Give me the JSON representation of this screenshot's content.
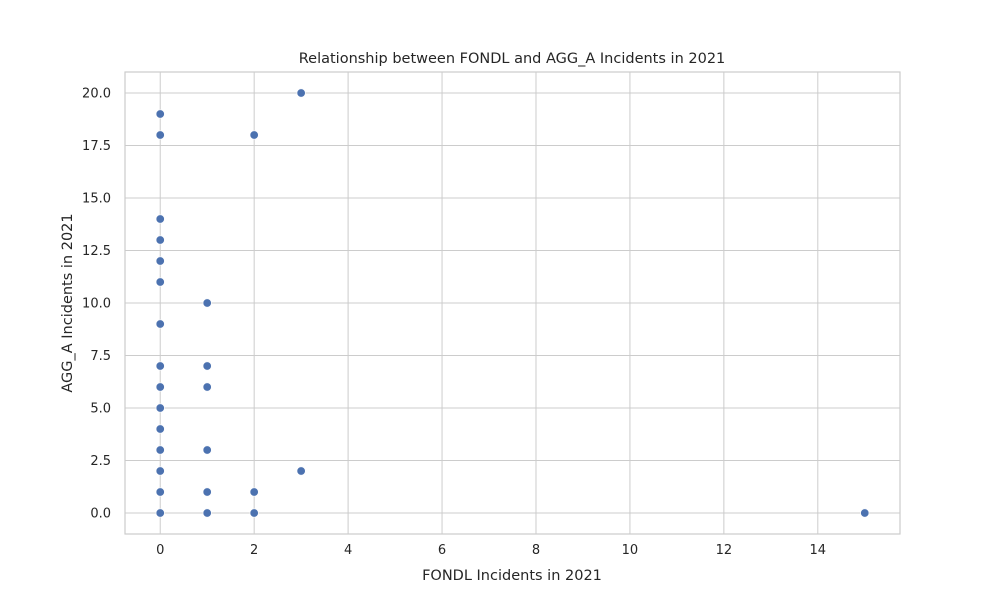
{
  "chart_data": {
    "type": "scatter",
    "title": "Relationship between FONDL and AGG_A Incidents in 2021",
    "xlabel": "FONDL Incidents in 2021",
    "ylabel": "AGG_A Incidents in 2021",
    "xlim": [
      -0.75,
      15.75
    ],
    "ylim": [
      -1,
      21
    ],
    "x_ticks": [
      0,
      2,
      4,
      6,
      8,
      10,
      12,
      14
    ],
    "y_ticks": [
      0,
      2.5,
      5,
      7.5,
      10,
      12.5,
      15,
      17.5,
      20
    ],
    "x_tick_labels": [
      "0",
      "2",
      "4",
      "6",
      "8",
      "10",
      "12",
      "14"
    ],
    "y_tick_labels": [
      "0.0",
      "2.5",
      "5.0",
      "7.5",
      "10.0",
      "12.5",
      "15.0",
      "17.5",
      "20.0"
    ],
    "grid": true,
    "color": "#4c72b0",
    "points": [
      {
        "x": 0,
        "y": 19
      },
      {
        "x": 0,
        "y": 18
      },
      {
        "x": 0,
        "y": 14
      },
      {
        "x": 0,
        "y": 13
      },
      {
        "x": 0,
        "y": 12
      },
      {
        "x": 0,
        "y": 11
      },
      {
        "x": 0,
        "y": 9
      },
      {
        "x": 0,
        "y": 7
      },
      {
        "x": 0,
        "y": 6
      },
      {
        "x": 0,
        "y": 5
      },
      {
        "x": 0,
        "y": 4
      },
      {
        "x": 0,
        "y": 3
      },
      {
        "x": 0,
        "y": 2
      },
      {
        "x": 0,
        "y": 1
      },
      {
        "x": 0,
        "y": 0
      },
      {
        "x": 1,
        "y": 10
      },
      {
        "x": 1,
        "y": 7
      },
      {
        "x": 1,
        "y": 6
      },
      {
        "x": 1,
        "y": 3
      },
      {
        "x": 1,
        "y": 1
      },
      {
        "x": 1,
        "y": 0
      },
      {
        "x": 2,
        "y": 18
      },
      {
        "x": 2,
        "y": 1
      },
      {
        "x": 2,
        "y": 0
      },
      {
        "x": 3,
        "y": 20
      },
      {
        "x": 3,
        "y": 2
      },
      {
        "x": 15,
        "y": 0
      }
    ]
  }
}
